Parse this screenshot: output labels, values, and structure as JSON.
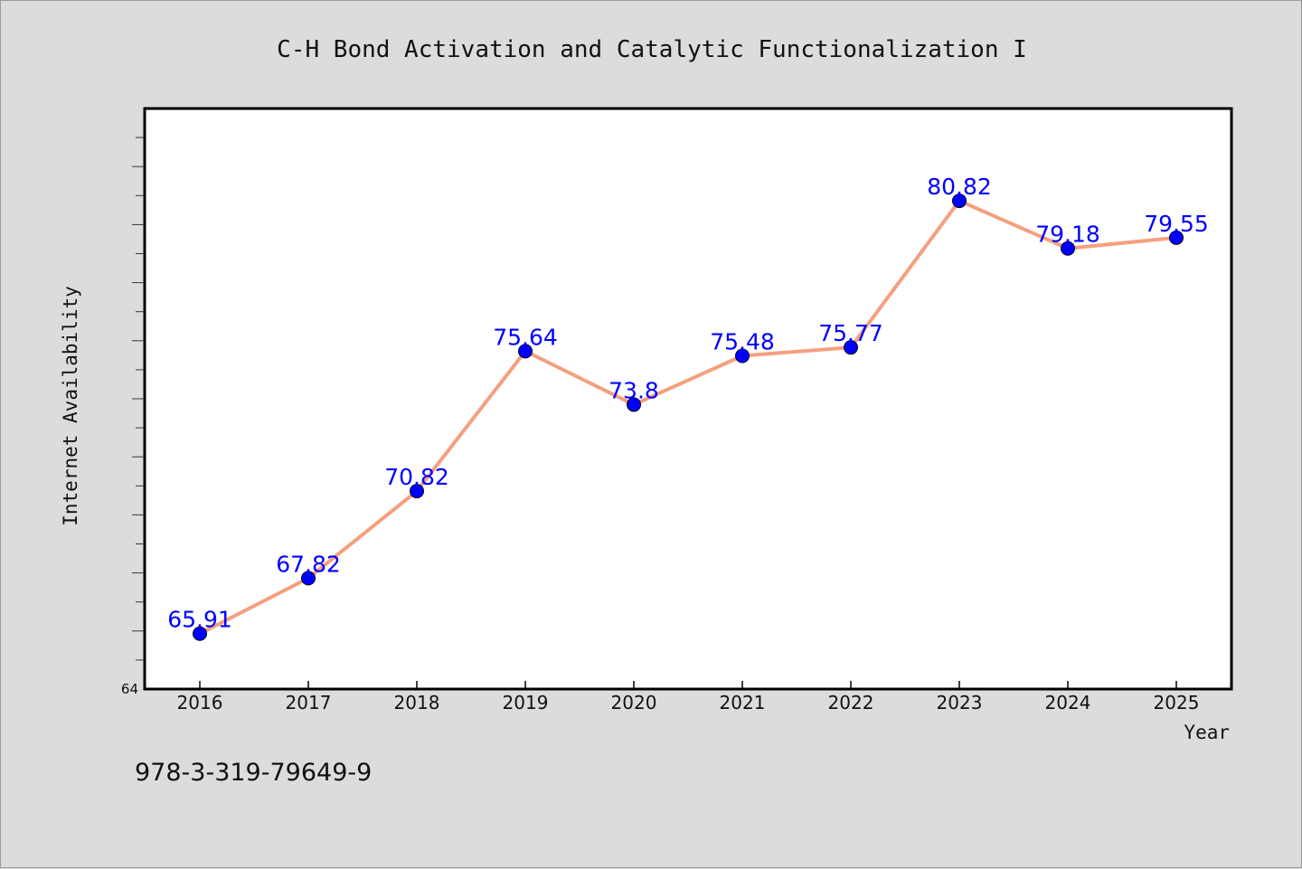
{
  "chart_data": {
    "type": "line",
    "title": "C-H Bond Activation and Catalytic Functionalization I",
    "xlabel": "Year",
    "ylabel": "Internet Availability",
    "categories": [
      "2016",
      "2017",
      "2018",
      "2019",
      "2020",
      "2021",
      "2022",
      "2023",
      "2024",
      "2025"
    ],
    "series": [
      {
        "values": [
          65.91,
          67.82,
          70.82,
          75.64,
          73.8,
          75.48,
          75.77,
          80.82,
          79.18,
          79.55
        ],
        "labels": [
          "65.91",
          "67.82",
          "70.82",
          "75.64",
          "73.8",
          "75.48",
          "75.77",
          "80.82",
          "79.18",
          "79.55"
        ]
      }
    ],
    "ylim": [
      64,
      84
    ],
    "y_tick_labels": [
      "64"
    ],
    "grid": false,
    "legend": "none",
    "colors": {
      "line": "#f4a07e",
      "marker": "#0000ff",
      "data_label": "#0000ff",
      "background": "#dcdcdc",
      "plot_background": "#ffffff"
    }
  },
  "footnote": "978-3-319-79649-9"
}
